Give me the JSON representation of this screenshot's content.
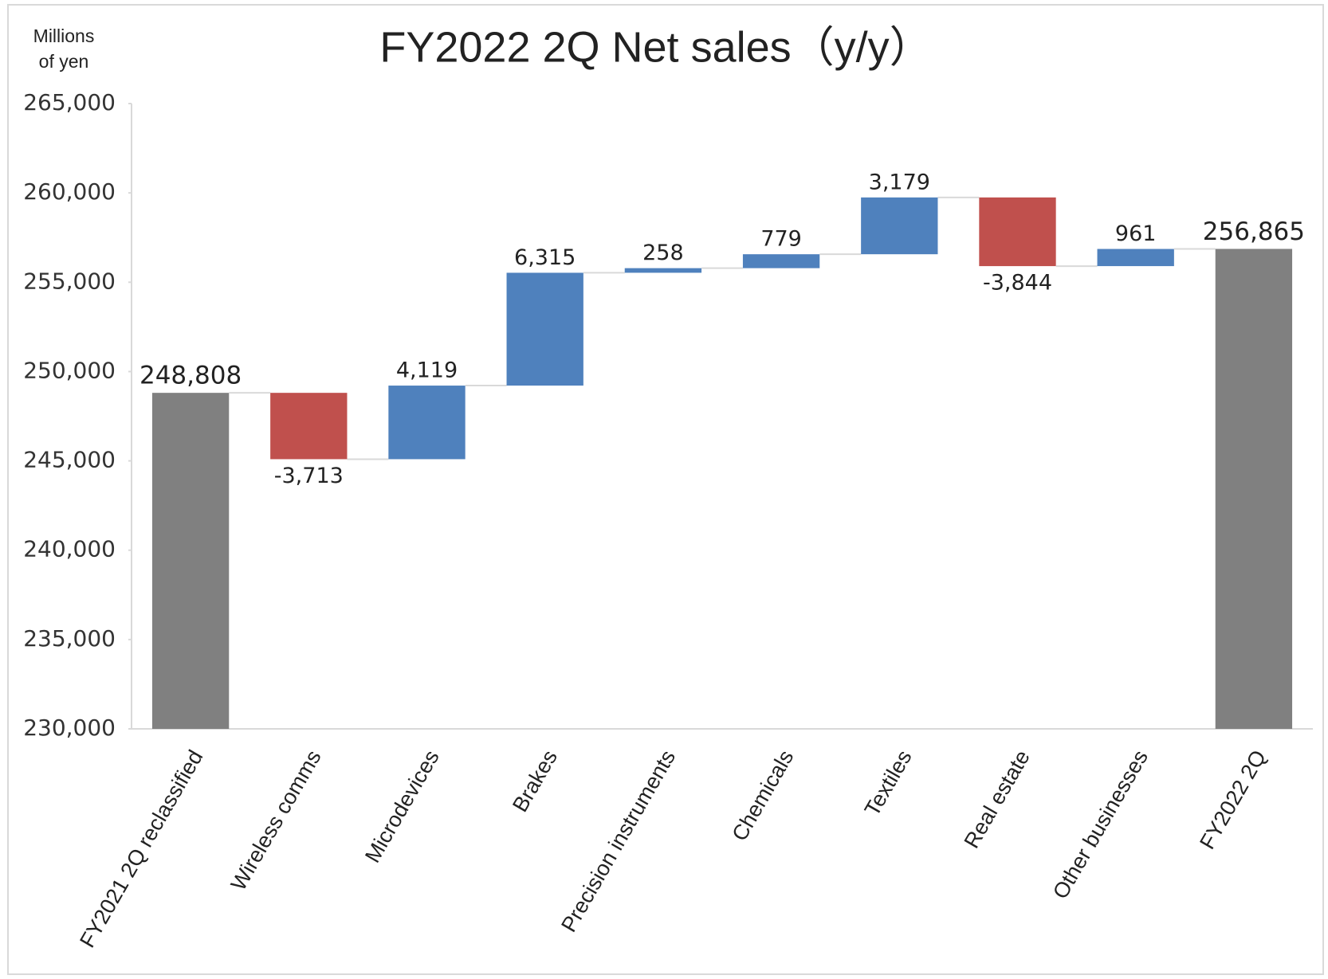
{
  "chart_data": {
    "type": "waterfall",
    "title": "FY2022 2Q Net sales（y/y）",
    "y_axis_label": "Millions of yen",
    "categories": [
      "FY2021 2Q reclassified",
      "Wireless comms",
      "Microdevices",
      "Brakes",
      "Precision instruments",
      "Chemicals",
      "Textiles",
      "Real estate",
      "Other businesses",
      "FY2022 2Q"
    ],
    "values": [
      248808,
      -3713,
      4119,
      6315,
      258,
      779,
      3179,
      -3844,
      961,
      256865
    ],
    "value_labels": [
      "248,808",
      "-3,713",
      "4,119",
      "6,315",
      "258",
      "779",
      "3,179",
      "-3,844",
      "961",
      "256,865"
    ],
    "totals": [
      true,
      false,
      false,
      false,
      false,
      false,
      false,
      false,
      false,
      true
    ],
    "total_color": "#808080",
    "increase_color": "#4f81bd",
    "decrease_color": "#c0504d",
    "ylim": [
      230000,
      265000
    ],
    "yticks": [
      {
        "value": 230000,
        "label": "230,000"
      },
      {
        "value": 235000,
        "label": "235,000"
      },
      {
        "value": 240000,
        "label": "240,000"
      },
      {
        "value": 245000,
        "label": "245,000"
      },
      {
        "value": 250000,
        "label": "250,000"
      },
      {
        "value": 255000,
        "label": "255,000"
      },
      {
        "value": 260000,
        "label": "260,000"
      },
      {
        "value": 265000,
        "label": "265,000"
      }
    ],
    "grid": false
  }
}
